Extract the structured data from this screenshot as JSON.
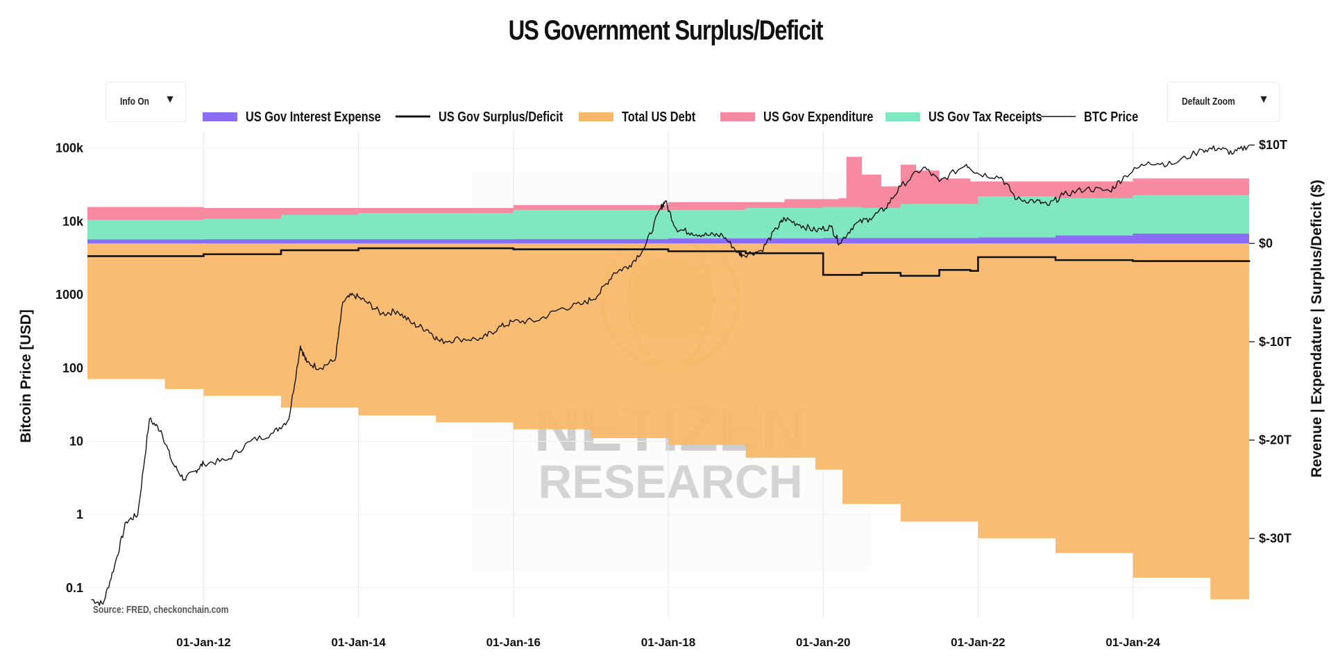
{
  "header": {
    "title": "US Government Surplus/Deficit"
  },
  "controls": {
    "info_label": "Info On",
    "zoom_label": "Default Zoom"
  },
  "source": "Source: FRED, checkonchain.com",
  "watermark": {
    "line1": "NETIZEN",
    "line2": "RESEARCH"
  },
  "chart_data": {
    "type": "area",
    "title": "US Government Surplus/Deficit",
    "y_left_label": "Bitcoin Price [USD]",
    "y_right_label": "Revenue | Expendature | Surplus/Deficit ($)",
    "y_left_scale": "log",
    "y_left_range": [
      0.04,
      150000
    ],
    "y_left_ticks": [
      {
        "v": 100000,
        "label": "100k"
      },
      {
        "v": 10000,
        "label": "10k"
      },
      {
        "v": 1000,
        "label": "1000"
      },
      {
        "v": 100,
        "label": "100"
      },
      {
        "v": 10,
        "label": "10"
      },
      {
        "v": 1,
        "label": "1"
      },
      {
        "v": 0.1,
        "label": "0.1"
      }
    ],
    "y_right_range": [
      -38,
      11
    ],
    "y_right_ticks": [
      {
        "v": 10,
        "label": "$10T"
      },
      {
        "v": 0,
        "label": "$0"
      },
      {
        "v": -10,
        "label": "$-10T"
      },
      {
        "v": -20,
        "label": "$-20T"
      },
      {
        "v": -30,
        "label": "$-30T"
      }
    ],
    "x_range": [
      2010.5,
      2025.5
    ],
    "x_ticks": [
      {
        "v": 2012,
        "label": "01-Jan-12"
      },
      {
        "v": 2014,
        "label": "01-Jan-14"
      },
      {
        "v": 2016,
        "label": "01-Jan-16"
      },
      {
        "v": 2018,
        "label": "01-Jan-18"
      },
      {
        "v": 2020,
        "label": "01-Jan-20"
      },
      {
        "v": 2022,
        "label": "01-Jan-22"
      },
      {
        "v": 2024,
        "label": "01-Jan-24"
      }
    ],
    "grid": true,
    "legend_position": "top",
    "series": [
      {
        "name": "US Gov Interest Expense",
        "color": "#8b6cf6",
        "style": "area",
        "x": [
          2010.5,
          2012.0,
          2014.0,
          2016.0,
          2018.0,
          2020.0,
          2021.0,
          2022.0,
          2023.0,
          2024.0,
          2025.5
        ],
        "y": [
          0.4,
          0.42,
          0.42,
          0.43,
          0.5,
          0.55,
          0.55,
          0.6,
          0.8,
          1.0,
          1.1
        ]
      },
      {
        "name": "US Gov Surplus/Deficit",
        "color": "#111111",
        "style": "line",
        "x": [
          2010.5,
          2011.9,
          2012.0,
          2012.9,
          2013.0,
          2013.9,
          2014.0,
          2015.9,
          2016.0,
          2017.9,
          2018.0,
          2018.9,
          2019.0,
          2019.9,
          2020.0,
          2020.4,
          2020.5,
          2021.0,
          2021.4,
          2021.5,
          2021.9,
          2022.0,
          2022.9,
          2023.0,
          2024.0,
          2025.5
        ],
        "y": [
          -1.3,
          -1.3,
          -1.1,
          -1.1,
          -0.7,
          -0.7,
          -0.5,
          -0.5,
          -0.6,
          -0.6,
          -0.8,
          -0.8,
          -1.0,
          -1.0,
          -3.2,
          -3.2,
          -3.0,
          -3.3,
          -3.3,
          -2.7,
          -2.8,
          -1.4,
          -1.4,
          -1.7,
          -1.8,
          -1.9
        ]
      },
      {
        "name": "Total US Debt",
        "color": "#f8b96a",
        "style": "area",
        "x": [
          2010.5,
          2011.5,
          2012.0,
          2013.0,
          2014.0,
          2015.0,
          2016.0,
          2017.0,
          2018.0,
          2019.0,
          2019.9,
          2020.25,
          2021.0,
          2022.0,
          2023.0,
          2024.0,
          2025.0,
          2025.5
        ],
        "y": [
          -13.8,
          -14.8,
          -15.5,
          -16.7,
          -17.5,
          -18.2,
          -18.9,
          -19.8,
          -20.5,
          -21.8,
          -23.0,
          -26.5,
          -28.3,
          -30.0,
          -31.5,
          -34.0,
          -36.2,
          -36.2
        ]
      },
      {
        "name": "US Gov Expenditure",
        "color": "#f78aa1",
        "style": "area",
        "x": [
          2010.5,
          2012.0,
          2014.0,
          2016.0,
          2018.0,
          2019.5,
          2020.2,
          2020.3,
          2020.5,
          2020.75,
          2021.0,
          2021.2,
          2021.5,
          2021.9,
          2022.5,
          2024.0,
          2025.5
        ],
        "y": [
          3.7,
          3.6,
          3.6,
          3.9,
          4.2,
          4.5,
          4.6,
          8.8,
          7.0,
          5.8,
          8.0,
          7.4,
          6.6,
          6.3,
          6.3,
          6.6,
          7.1
        ]
      },
      {
        "name": "US Gov Tax Receipts",
        "color": "#80e8c0",
        "style": "area",
        "x": [
          2010.5,
          2012.0,
          2013.0,
          2014.0,
          2016.0,
          2018.0,
          2019.0,
          2020.0,
          2020.5,
          2021.0,
          2022.0,
          2023.0,
          2024.0,
          2025.5
        ],
        "y": [
          2.4,
          2.5,
          2.9,
          3.1,
          3.4,
          3.4,
          3.6,
          3.7,
          3.6,
          4.0,
          4.8,
          4.6,
          4.9,
          5.2
        ]
      },
      {
        "name": "BTC Price",
        "color": "#111111",
        "style": "line",
        "axis": "left",
        "x": [
          2010.55,
          2010.7,
          2010.85,
          2011.0,
          2011.15,
          2011.3,
          2011.45,
          2011.6,
          2011.75,
          2011.9,
          2012.0,
          2012.3,
          2012.6,
          2012.9,
          2013.1,
          2013.25,
          2013.33,
          2013.5,
          2013.7,
          2013.8,
          2013.93,
          2014.1,
          2014.3,
          2014.5,
          2014.7,
          2014.9,
          2015.05,
          2015.3,
          2015.6,
          2015.8,
          2016.0,
          2016.3,
          2016.6,
          2016.9,
          2017.1,
          2017.3,
          2017.5,
          2017.7,
          2017.9,
          2017.96,
          2018.1,
          2018.3,
          2018.5,
          2018.7,
          2018.9,
          2018.96,
          2019.2,
          2019.4,
          2019.5,
          2019.7,
          2019.9,
          2020.1,
          2020.21,
          2020.4,
          2020.6,
          2020.8,
          2021.0,
          2021.3,
          2021.5,
          2021.85,
          2022.0,
          2022.3,
          2022.5,
          2022.75,
          2022.9,
          2023.1,
          2023.4,
          2023.7,
          2023.9,
          2024.2,
          2024.5,
          2024.9,
          2025.1,
          2025.3,
          2025.5
        ],
        "y": [
          0.07,
          0.06,
          0.2,
          0.8,
          1.0,
          20,
          14,
          5,
          3,
          4,
          5,
          5.5,
          10,
          13,
          20,
          200,
          120,
          100,
          130,
          800,
          1000,
          800,
          550,
          600,
          400,
          330,
          230,
          250,
          250,
          350,
          430,
          440,
          640,
          750,
          1000,
          2000,
          2500,
          4500,
          15000,
          19000,
          8000,
          7000,
          6500,
          6500,
          3800,
          3500,
          4000,
          8000,
          11000,
          9000,
          7500,
          8500,
          5000,
          9000,
          11000,
          15000,
          30000,
          55000,
          35000,
          60000,
          45000,
          40000,
          20000,
          19000,
          16500,
          23000,
          28000,
          26000,
          42000,
          65000,
          60000,
          95000,
          100000,
          85000,
          110000
        ]
      }
    ]
  }
}
